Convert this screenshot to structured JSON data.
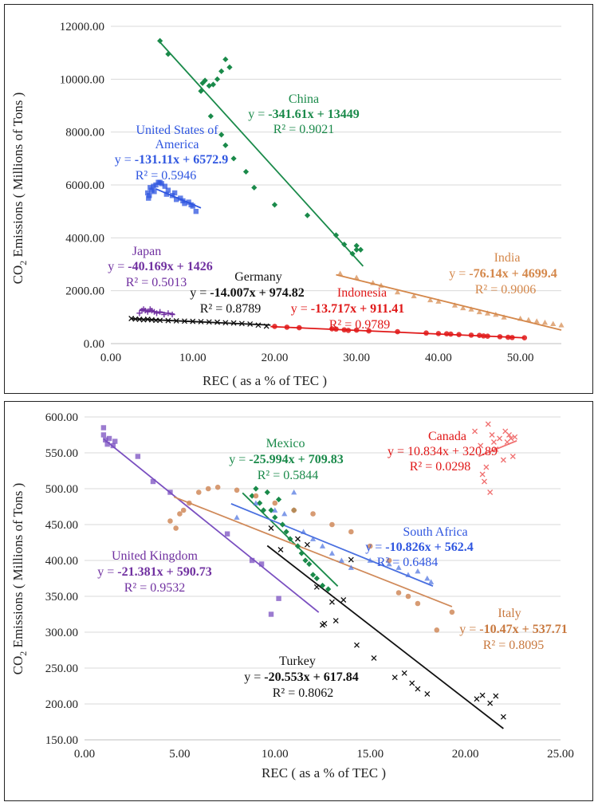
{
  "chart_data": [
    {
      "type": "scatter",
      "xlabel": "REC ( as a % of TEC )",
      "ylabel_main": "CO",
      "ylabel_sub": "2",
      "ylabel_rest": " Emissions ( Millions of Tons )",
      "xlim": [
        0,
        55
      ],
      "ylim": [
        0,
        12000
      ],
      "xticks": [
        0,
        10,
        20,
        30,
        40,
        50
      ],
      "yticks": [
        0,
        2000,
        4000,
        6000,
        8000,
        10000,
        12000
      ],
      "xtick_labels": [
        "0.00",
        "10.00",
        "20.00",
        "30.00",
        "40.00",
        "50.00"
      ],
      "ytick_labels": [
        "0.00",
        "2000.00",
        "4000.00",
        "6000.00",
        "8000.00",
        "10000.00",
        "12000.00"
      ],
      "series": [
        {
          "name": "China",
          "color": "#1a8a4a",
          "marker": "diamond",
          "x": [
            6.0,
            7.0,
            11.0,
            11.5,
            12.0,
            12.5,
            13.0,
            13.5,
            14.0,
            14.5,
            11.2,
            12.2,
            13.5,
            14.0,
            15.0,
            16.5,
            17.5,
            20.0,
            24.0,
            27.5,
            28.5,
            29.5,
            30.0,
            30.5,
            30.0
          ],
          "y": [
            11450,
            10950,
            9550,
            9950,
            9750,
            9800,
            10000,
            10300,
            10750,
            10450,
            9850,
            8600,
            7900,
            7500,
            7000,
            6500,
            5900,
            5250,
            4850,
            4100,
            3750,
            3400,
            3550,
            3550,
            3700
          ],
          "fit": {
            "slope": -341.61,
            "intercept": 13449,
            "x_range": [
              5.8,
              30.8
            ]
          },
          "label": "China",
          "eq_prefix": "y = ",
          "eq_bold": "-341.61x + 13449",
          "r2": "R² = 0.9021"
        },
        {
          "name": "United States of America",
          "color": "#2f56e0",
          "marker": "square",
          "x": [
            4.5,
            4.6,
            4.8,
            5.0,
            5.2,
            5.5,
            5.8,
            6.2,
            6.6,
            7.0,
            7.5,
            8.0,
            8.5,
            9.0,
            9.5,
            10.0,
            10.4,
            4.7,
            5.3,
            6.0,
            6.8,
            7.8,
            8.8,
            9.8
          ],
          "y": [
            5700,
            5500,
            5900,
            5800,
            5950,
            6000,
            6100,
            6050,
            5950,
            5800,
            5600,
            5450,
            5500,
            5300,
            5350,
            5200,
            5000,
            5600,
            5750,
            6100,
            5650,
            5700,
            5400,
            5250
          ],
          "fit": {
            "slope": -131.11,
            "intercept": 6572.9,
            "x_range": [
              5.5,
              11.0
            ]
          },
          "label_lines": [
            "United States of",
            "America"
          ],
          "eq_prefix": "y = ",
          "eq_bold": "-131.11x + 6572.9",
          "r2": "R² = 0.5946"
        },
        {
          "name": "Japan",
          "color": "#7030a0",
          "marker": "plus",
          "x": [
            3.5,
            3.8,
            4.0,
            4.2,
            4.5,
            4.8,
            5.0,
            5.3,
            5.6,
            6.0,
            6.5,
            7.0,
            7.5
          ],
          "y": [
            1150,
            1250,
            1300,
            1250,
            1200,
            1300,
            1250,
            1200,
            1150,
            1200,
            1100,
            1150,
            1100
          ],
          "fit": {
            "slope": -40.169,
            "intercept": 1426,
            "x_range": [
              3.5,
              7.8
            ]
          },
          "label": "Japan",
          "eq_prefix": "y = ",
          "eq_bold": "-40.169x + 1426",
          "r2": "R² = 0.5013"
        },
        {
          "name": "Germany",
          "color": "#111111",
          "marker": "x",
          "x": [
            2.5,
            3.0,
            3.5,
            4.0,
            4.5,
            5.0,
            5.5,
            6.0,
            7.0,
            8.0,
            9.0,
            10.0,
            11.0,
            12.0,
            13.0,
            14.0,
            15.0,
            16.0,
            17.0,
            18.0,
            19.0
          ],
          "y": [
            950,
            930,
            920,
            900,
            920,
            900,
            880,
            880,
            870,
            860,
            850,
            840,
            830,
            820,
            810,
            790,
            780,
            760,
            740,
            700,
            660
          ],
          "fit": {
            "slope": -14.007,
            "intercept": 974.82,
            "x_range": [
              2.5,
              19.5
            ]
          },
          "label": "Germany",
          "eq_prefix": "y = ",
          "eq_bold": "-14.007x + 974.82",
          "r2": "R² = 0.8789"
        },
        {
          "name": "Indonesia",
          "color": "#e01818",
          "marker": "circle",
          "x": [
            20.0,
            21.5,
            23.0,
            27.0,
            27.5,
            28.5,
            29.0,
            30.0,
            31.5,
            35.0,
            38.5,
            40.0,
            41.0,
            41.5,
            42.5,
            44.0,
            45.0,
            45.5,
            46.0,
            47.5,
            48.5,
            49.0,
            50.5
          ],
          "y": [
            650,
            620,
            600,
            560,
            550,
            520,
            500,
            510,
            480,
            450,
            400,
            380,
            370,
            360,
            340,
            320,
            310,
            290,
            280,
            260,
            240,
            230,
            220
          ],
          "fit": {
            "slope": -13.717,
            "intercept": 911.41,
            "x_range": [
              19.5,
              50.5
            ]
          },
          "label": "Indonesia",
          "eq_prefix": "y = ",
          "eq_bold": "-13.717x + 911.41",
          "r2": "R² = 0.9789"
        },
        {
          "name": "India",
          "color": "#d4874a",
          "marker": "triangle",
          "x": [
            28.0,
            30.0,
            32.0,
            33.0,
            35.0,
            37.0,
            39.0,
            40.0,
            42.0,
            43.0,
            44.0,
            45.0,
            46.0,
            47.0,
            48.0,
            50.0,
            51.0,
            52.0,
            53.0,
            54.0,
            55.0
          ],
          "y": [
            2650,
            2500,
            2300,
            2200,
            1950,
            1800,
            1650,
            1600,
            1450,
            1350,
            1300,
            1200,
            1150,
            1100,
            1000,
            950,
            900,
            850,
            800,
            750,
            700
          ],
          "fit": {
            "slope": -76.14,
            "intercept": 4699.4,
            "x_range": [
              27.5,
              55.0
            ]
          },
          "label": "India",
          "eq_prefix": "y = ",
          "eq_bold": "-76.14x + 4699.4",
          "r2": "R² = 0.9006"
        }
      ]
    },
    {
      "type": "scatter",
      "xlabel": "REC ( as a % of TEC )",
      "ylabel_main": "CO",
      "ylabel_sub": "2",
      "ylabel_rest": " Emissions ( Millions of Tons )",
      "xlim": [
        0,
        25
      ],
      "ylim": [
        150,
        600
      ],
      "xticks": [
        0,
        5,
        10,
        15,
        20,
        25
      ],
      "yticks": [
        150,
        200,
        250,
        300,
        350,
        400,
        450,
        500,
        550,
        600
      ],
      "xtick_labels": [
        "0.00",
        "5.00",
        "10.00",
        "15.00",
        "20.00",
        "25.00"
      ],
      "ytick_labels": [
        "150.00",
        "200.00",
        "250.00",
        "300.00",
        "350.00",
        "400.00",
        "450.00",
        "500.00",
        "550.00",
        "600.00"
      ],
      "series": [
        {
          "name": "United Kingdom",
          "color": "#7a4fc0",
          "marker": "square",
          "x": [
            1.0,
            1.0,
            1.1,
            1.2,
            1.3,
            1.5,
            1.6,
            2.8,
            3.6,
            4.5,
            7.5,
            8.8,
            9.3,
            9.8,
            10.2
          ],
          "y": [
            585,
            575,
            568,
            562,
            570,
            560,
            566,
            545,
            510,
            495,
            437,
            400,
            395,
            325,
            347
          ],
          "fit": {
            "slope": -21.381,
            "intercept": 590.73,
            "x_range": [
              1.0,
              12.3
            ]
          },
          "label": "United Kingdom",
          "eq_prefix": "y = ",
          "eq_bold": "-21.381x + 590.73",
          "r2": "R² = 0.9532"
        },
        {
          "name": "Mexico",
          "color": "#1a8a4a",
          "marker": "diamond",
          "x": [
            8.8,
            9.0,
            9.2,
            9.4,
            9.6,
            9.8,
            10.0,
            10.2,
            10.4,
            10.6,
            10.8,
            11.0,
            11.2,
            11.4,
            11.6,
            11.8,
            12.0,
            12.2,
            12.5,
            12.8
          ],
          "y": [
            490,
            500,
            480,
            470,
            495,
            470,
            460,
            485,
            450,
            440,
            430,
            470,
            420,
            410,
            400,
            395,
            380,
            375,
            365,
            360
          ],
          "fit": {
            "slope": -25.994,
            "intercept": 709.83,
            "x_range": [
              8.3,
              13.3
            ]
          },
          "label": "Mexico",
          "eq_prefix": "y = ",
          "eq_bold": "-25.994x + 709.83",
          "r2": "R² = 0.5844"
        },
        {
          "name": "South Africa",
          "color": "#4a70e0",
          "marker": "triangle",
          "x": [
            8.0,
            9.0,
            10.0,
            10.5,
            11.0,
            11.5,
            12.0,
            12.5,
            13.0,
            13.5,
            14.0,
            15.0,
            16.0,
            16.5,
            17.0,
            17.5,
            18.0,
            18.2
          ],
          "y": [
            460,
            480,
            470,
            465,
            495,
            440,
            430,
            420,
            410,
            400,
            390,
            400,
            395,
            390,
            380,
            385,
            375,
            370
          ],
          "fit": {
            "slope": -10.826,
            "intercept": 562.4,
            "x_range": [
              7.7,
              18.3
            ]
          },
          "label": "South Africa",
          "eq_prefix": "y = ",
          "eq_bold": "-10.826x + 562.4",
          "r2": "R² = 0.6484"
        },
        {
          "name": "Italy",
          "color": "#d08a5a",
          "marker": "circle",
          "x": [
            4.5,
            4.8,
            5.0,
            5.2,
            5.5,
            6.0,
            6.5,
            7.0,
            8.0,
            9.0,
            10.0,
            11.0,
            12.0,
            13.0,
            14.0,
            15.0,
            16.0,
            16.5,
            17.0,
            17.5,
            18.5,
            19.3
          ],
          "y": [
            455,
            445,
            465,
            470,
            480,
            495,
            500,
            502,
            498,
            490,
            480,
            470,
            465,
            450,
            440,
            420,
            400,
            355,
            350,
            340,
            303,
            328
          ],
          "fit": {
            "slope": -10.47,
            "intercept": 537.71,
            "x_range": [
              4.7,
              19.3
            ]
          },
          "label": "Italy",
          "eq_prefix": "y = ",
          "eq_bold": "-10.47x + 537.71",
          "r2": "R² = 0.8095"
        },
        {
          "name": "Canada",
          "color": "#f07070",
          "marker": "x",
          "x": [
            20.5,
            20.8,
            21.0,
            21.2,
            21.4,
            21.5,
            21.6,
            21.8,
            22.0,
            22.1,
            22.2,
            22.3,
            22.4,
            22.5,
            22.6,
            21.3,
            21.1,
            20.9
          ],
          "y": [
            580,
            560,
            510,
            590,
            575,
            565,
            555,
            570,
            540,
            580,
            565,
            575,
            570,
            545,
            572,
            495,
            530,
            520
          ],
          "fit": {
            "slope": 10.834,
            "intercept": 320.89,
            "x_range": [
              20.7,
              22.7
            ]
          },
          "label": "Canada",
          "eq_prefix": "y = ",
          "eq_bold": "10.834x + 320.89",
          "r2": "R² = 0.0298"
        },
        {
          "name": "Turkey",
          "color": "#111111",
          "marker": "x",
          "x": [
            9.8,
            10.3,
            11.2,
            11.7,
            12.2,
            12.5,
            12.6,
            13.0,
            13.2,
            13.6,
            14.0,
            14.3,
            15.2,
            16.3,
            16.8,
            17.2,
            17.5,
            18.0,
            20.6,
            20.9,
            21.3,
            21.6,
            22.0
          ],
          "y": [
            445,
            415,
            430,
            422,
            363,
            310,
            312,
            342,
            316,
            345,
            401,
            282,
            264,
            237,
            243,
            229,
            221,
            214,
            207,
            212,
            201,
            211,
            182
          ],
          "fit": {
            "slope": -20.553,
            "intercept": 617.84,
            "x_range": [
              9.6,
              22.0
            ]
          },
          "label": "Turkey",
          "eq_prefix": "y = ",
          "eq_bold": "-20.553x + 617.84",
          "r2": "R² = 0.8062"
        }
      ]
    }
  ]
}
